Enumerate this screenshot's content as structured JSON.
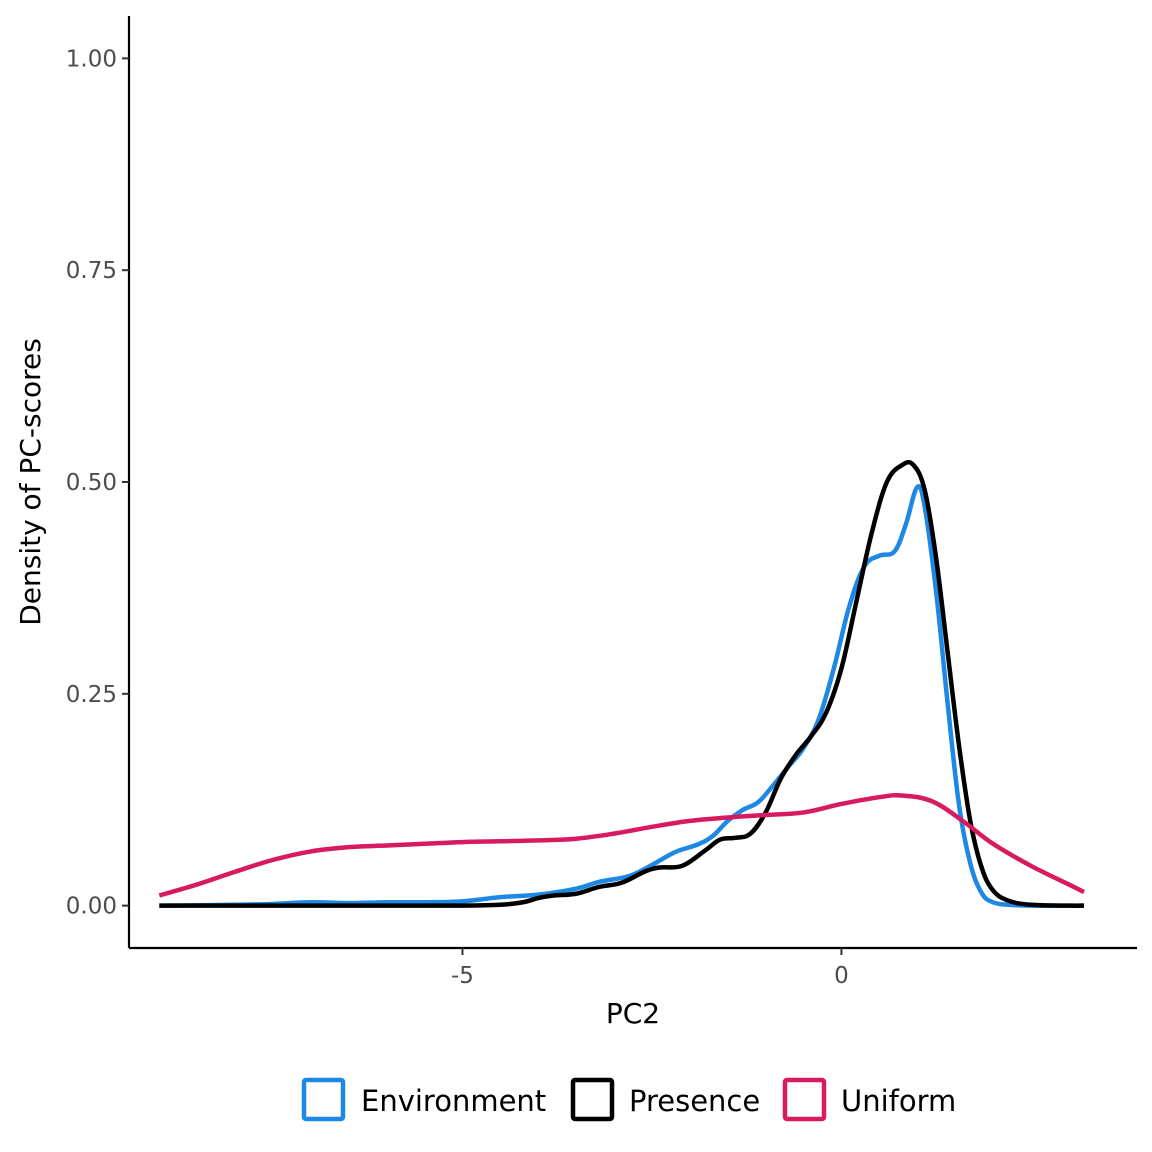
{
  "chart_data": {
    "type": "line",
    "title": "",
    "xlabel": "PC2",
    "ylabel": "Density of PC-scores",
    "xlim": [
      -9.4,
      3.9
    ],
    "ylim": [
      -0.05,
      1.05
    ],
    "x_ticks": [
      {
        "value": -5,
        "label": "-5"
      },
      {
        "value": 0,
        "label": "0"
      }
    ],
    "y_ticks": [
      {
        "value": 0.0,
        "label": "0.00"
      },
      {
        "value": 0.25,
        "label": "0.25"
      },
      {
        "value": 0.5,
        "label": "0.50"
      },
      {
        "value": 0.75,
        "label": "0.75"
      },
      {
        "value": 1.0,
        "label": "1.00"
      }
    ],
    "grid": false,
    "legend_position": "bottom",
    "series": [
      {
        "name": "Environment",
        "color": "#1E88E5",
        "x": [
          -9.0,
          -8.0,
          -7.5,
          -7.0,
          -6.5,
          -6.0,
          -5.5,
          -5.0,
          -4.5,
          -4.0,
          -3.5,
          -3.2,
          -2.8,
          -2.5,
          -2.2,
          -1.9,
          -1.7,
          -1.5,
          -1.3,
          -1.1,
          -0.9,
          -0.7,
          -0.5,
          -0.3,
          -0.1,
          0.1,
          0.3,
          0.5,
          0.7,
          0.85,
          1.0,
          1.1,
          1.25,
          1.4,
          1.55,
          1.7,
          1.85,
          2.0,
          2.2,
          2.5,
          3.0,
          3.2
        ],
        "y": [
          0.0,
          0.001,
          0.002,
          0.004,
          0.003,
          0.004,
          0.004,
          0.005,
          0.01,
          0.013,
          0.02,
          0.028,
          0.035,
          0.048,
          0.063,
          0.072,
          0.082,
          0.1,
          0.113,
          0.122,
          0.142,
          0.164,
          0.186,
          0.22,
          0.28,
          0.352,
          0.4,
          0.413,
          0.418,
          0.45,
          0.494,
          0.47,
          0.37,
          0.24,
          0.12,
          0.05,
          0.015,
          0.004,
          0.001,
          0.0,
          0.0,
          0.0
        ]
      },
      {
        "name": "Presence",
        "color": "#000000",
        "x": [
          -9.0,
          -7.0,
          -6.0,
          -5.0,
          -4.5,
          -4.2,
          -4.0,
          -3.8,
          -3.5,
          -3.2,
          -2.9,
          -2.6,
          -2.4,
          -2.1,
          -1.8,
          -1.6,
          -1.4,
          -1.2,
          -1.0,
          -0.8,
          -0.6,
          -0.4,
          -0.2,
          0.0,
          0.2,
          0.4,
          0.6,
          0.8,
          0.95,
          1.1,
          1.25,
          1.4,
          1.55,
          1.7,
          1.85,
          2.0,
          2.2,
          2.5,
          3.0,
          3.2
        ],
        "y": [
          0.0,
          0.0,
          0.0,
          0.0,
          0.001,
          0.004,
          0.009,
          0.012,
          0.014,
          0.022,
          0.027,
          0.04,
          0.045,
          0.047,
          0.065,
          0.078,
          0.08,
          0.085,
          0.11,
          0.15,
          0.178,
          0.2,
          0.228,
          0.28,
          0.36,
          0.44,
          0.5,
          0.52,
          0.52,
          0.49,
          0.41,
          0.3,
          0.19,
          0.1,
          0.045,
          0.018,
          0.006,
          0.001,
          0.0,
          0.0
        ]
      },
      {
        "name": "Uniform",
        "color": "#D81B60",
        "x": [
          -9.0,
          -8.5,
          -8.0,
          -7.5,
          -7.0,
          -6.5,
          -6.0,
          -5.5,
          -5.0,
          -4.5,
          -4.0,
          -3.5,
          -3.0,
          -2.5,
          -2.0,
          -1.5,
          -1.0,
          -0.5,
          0.0,
          0.5,
          0.8,
          1.2,
          1.6,
          2.0,
          2.5,
          3.0,
          3.2
        ],
        "y": [
          0.012,
          0.025,
          0.04,
          0.054,
          0.064,
          0.069,
          0.071,
          0.073,
          0.075,
          0.076,
          0.077,
          0.079,
          0.085,
          0.093,
          0.1,
          0.104,
          0.107,
          0.11,
          0.12,
          0.128,
          0.13,
          0.123,
          0.1,
          0.073,
          0.047,
          0.025,
          0.016
        ]
      }
    ]
  },
  "legend": {
    "items": [
      {
        "label": "Environment",
        "color": "#1E88E5"
      },
      {
        "label": "Presence",
        "color": "#000000"
      },
      {
        "label": "Uniform",
        "color": "#D81B60"
      }
    ]
  }
}
